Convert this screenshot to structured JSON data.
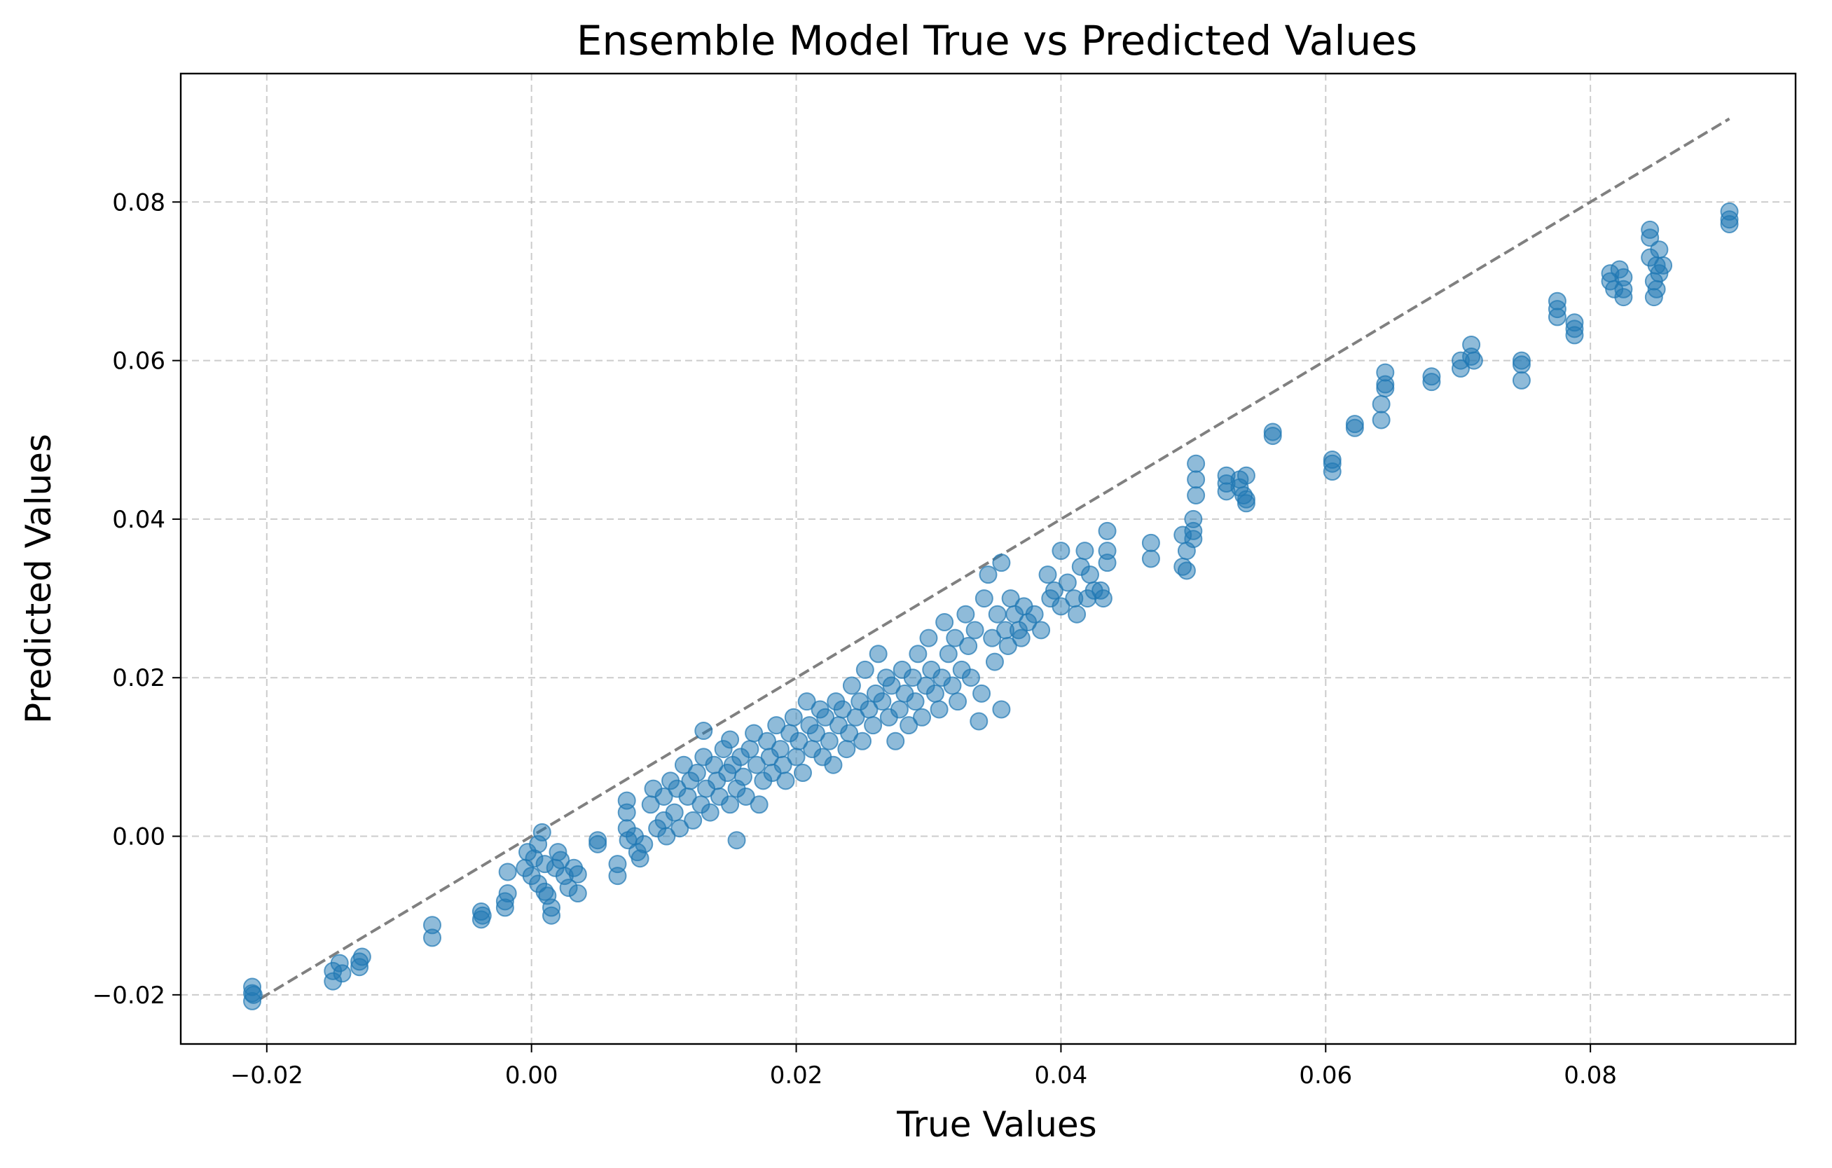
{
  "colors": {
    "point": "#1f77b4",
    "reference_line": "#808080",
    "grid": "#b0b0b0"
  },
  "chart_data": {
    "type": "scatter",
    "title": "Ensemble Model True vs Predicted Values",
    "xlabel": "True Values",
    "ylabel": "Predicted Values",
    "xlim": [
      -0.0265,
      0.0955
    ],
    "ylim": [
      -0.0262,
      0.0962
    ],
    "xticks": [
      {
        "value": -0.02,
        "label": "−0.02"
      },
      {
        "value": 0.0,
        "label": "0.00"
      },
      {
        "value": 0.02,
        "label": "0.02"
      },
      {
        "value": 0.04,
        "label": "0.04"
      },
      {
        "value": 0.06,
        "label": "0.06"
      },
      {
        "value": 0.08,
        "label": "0.08"
      }
    ],
    "yticks": [
      {
        "value": -0.02,
        "label": "−0.02"
      },
      {
        "value": 0.0,
        "label": "0.00"
      },
      {
        "value": 0.02,
        "label": "0.02"
      },
      {
        "value": 0.04,
        "label": "0.04"
      },
      {
        "value": 0.06,
        "label": "0.06"
      },
      {
        "value": 0.08,
        "label": "0.08"
      }
    ],
    "grid": true,
    "point_alpha": 0.5,
    "reference_line": {
      "from": [
        -0.0205,
        -0.0205
      ],
      "to": [
        0.0905,
        0.0905
      ],
      "style": "dashed"
    },
    "points": [
      [
        -0.0211,
        -0.0208
      ],
      [
        -0.0211,
        -0.0198
      ],
      [
        -0.0211,
        -0.019
      ],
      [
        -0.021,
        -0.02
      ],
      [
        -0.015,
        -0.0183
      ],
      [
        -0.015,
        -0.017
      ],
      [
        -0.0145,
        -0.016
      ],
      [
        -0.0143,
        -0.0173
      ],
      [
        -0.013,
        -0.0158
      ],
      [
        -0.013,
        -0.0165
      ],
      [
        -0.0128,
        -0.0152
      ],
      [
        -0.0075,
        -0.0128
      ],
      [
        -0.0075,
        -0.0112
      ],
      [
        -0.0038,
        -0.0105
      ],
      [
        -0.0038,
        -0.0095
      ],
      [
        -0.0037,
        -0.01
      ],
      [
        -0.002,
        -0.009
      ],
      [
        -0.0018,
        -0.0072
      ],
      [
        -0.0018,
        -0.0045
      ],
      [
        -0.002,
        -0.0082
      ],
      [
        -0.0005,
        -0.004
      ],
      [
        -0.0003,
        -0.002
      ],
      [
        0.0,
        -0.005
      ],
      [
        0.0002,
        -0.0028
      ],
      [
        0.0005,
        -0.006
      ],
      [
        0.0005,
        -0.001
      ],
      [
        0.0008,
        0.0005
      ],
      [
        0.001,
        -0.007
      ],
      [
        0.001,
        -0.0035
      ],
      [
        0.0012,
        -0.0075
      ],
      [
        0.0015,
        -0.01
      ],
      [
        0.0015,
        -0.009
      ],
      [
        0.0018,
        -0.004
      ],
      [
        0.002,
        -0.002
      ],
      [
        0.0022,
        -0.003
      ],
      [
        0.0025,
        -0.005
      ],
      [
        0.0028,
        -0.0065
      ],
      [
        0.0032,
        -0.004
      ],
      [
        0.0035,
        -0.0072
      ],
      [
        0.0035,
        -0.0048
      ],
      [
        0.005,
        -0.001
      ],
      [
        0.005,
        -0.0005
      ],
      [
        0.0065,
        -0.005
      ],
      [
        0.0065,
        -0.0035
      ],
      [
        0.0072,
        0.0045
      ],
      [
        0.0072,
        0.003
      ],
      [
        0.0072,
        0.001
      ],
      [
        0.0073,
        -0.0005
      ],
      [
        0.0078,
        0.0
      ],
      [
        0.008,
        -0.002
      ],
      [
        0.0082,
        -0.0028
      ],
      [
        0.0085,
        -0.001
      ],
      [
        0.009,
        0.004
      ],
      [
        0.0092,
        0.006
      ],
      [
        0.0095,
        0.001
      ],
      [
        0.01,
        0.002
      ],
      [
        0.01,
        0.005
      ],
      [
        0.0102,
        0.0
      ],
      [
        0.0105,
        0.007
      ],
      [
        0.0108,
        0.003
      ],
      [
        0.011,
        0.006
      ],
      [
        0.0112,
        0.001
      ],
      [
        0.0115,
        0.009
      ],
      [
        0.0118,
        0.005
      ],
      [
        0.012,
        0.007
      ],
      [
        0.0122,
        0.002
      ],
      [
        0.0125,
        0.008
      ],
      [
        0.0128,
        0.004
      ],
      [
        0.013,
        0.0133
      ],
      [
        0.013,
        0.01
      ],
      [
        0.0132,
        0.006
      ],
      [
        0.0135,
        0.003
      ],
      [
        0.0138,
        0.009
      ],
      [
        0.014,
        0.007
      ],
      [
        0.0142,
        0.005
      ],
      [
        0.0145,
        0.011
      ],
      [
        0.0148,
        0.008
      ],
      [
        0.015,
        0.0122
      ],
      [
        0.015,
        0.004
      ],
      [
        0.0152,
        0.009
      ],
      [
        0.0155,
        -0.0005
      ],
      [
        0.0155,
        0.006
      ],
      [
        0.0158,
        0.01
      ],
      [
        0.016,
        0.0075
      ],
      [
        0.0162,
        0.005
      ],
      [
        0.0165,
        0.011
      ],
      [
        0.0168,
        0.013
      ],
      [
        0.017,
        0.009
      ],
      [
        0.0172,
        0.004
      ],
      [
        0.0175,
        0.007
      ],
      [
        0.0178,
        0.012
      ],
      [
        0.018,
        0.01
      ],
      [
        0.0182,
        0.008
      ],
      [
        0.0185,
        0.014
      ],
      [
        0.0188,
        0.011
      ],
      [
        0.019,
        0.009
      ],
      [
        0.0192,
        0.007
      ],
      [
        0.0195,
        0.013
      ],
      [
        0.0198,
        0.015
      ],
      [
        0.02,
        0.01
      ],
      [
        0.0202,
        0.012
      ],
      [
        0.0205,
        0.008
      ],
      [
        0.0208,
        0.017
      ],
      [
        0.021,
        0.014
      ],
      [
        0.0212,
        0.011
      ],
      [
        0.0215,
        0.013
      ],
      [
        0.0218,
        0.016
      ],
      [
        0.022,
        0.01
      ],
      [
        0.0222,
        0.015
      ],
      [
        0.0225,
        0.012
      ],
      [
        0.0228,
        0.009
      ],
      [
        0.023,
        0.017
      ],
      [
        0.0232,
        0.014
      ],
      [
        0.0235,
        0.016
      ],
      [
        0.0238,
        0.011
      ],
      [
        0.024,
        0.013
      ],
      [
        0.0242,
        0.019
      ],
      [
        0.0245,
        0.015
      ],
      [
        0.0248,
        0.017
      ],
      [
        0.025,
        0.012
      ],
      [
        0.0252,
        0.021
      ],
      [
        0.0255,
        0.016
      ],
      [
        0.0258,
        0.014
      ],
      [
        0.026,
        0.018
      ],
      [
        0.0262,
        0.023
      ],
      [
        0.0265,
        0.017
      ],
      [
        0.0268,
        0.02
      ],
      [
        0.027,
        0.015
      ],
      [
        0.0272,
        0.019
      ],
      [
        0.0275,
        0.012
      ],
      [
        0.0278,
        0.016
      ],
      [
        0.028,
        0.021
      ],
      [
        0.0282,
        0.018
      ],
      [
        0.0285,
        0.014
      ],
      [
        0.0288,
        0.02
      ],
      [
        0.029,
        0.017
      ],
      [
        0.0292,
        0.023
      ],
      [
        0.0295,
        0.015
      ],
      [
        0.0298,
        0.019
      ],
      [
        0.03,
        0.025
      ],
      [
        0.0302,
        0.021
      ],
      [
        0.0305,
        0.018
      ],
      [
        0.0308,
        0.016
      ],
      [
        0.031,
        0.02
      ],
      [
        0.0312,
        0.027
      ],
      [
        0.0315,
        0.023
      ],
      [
        0.0318,
        0.019
      ],
      [
        0.032,
        0.025
      ],
      [
        0.0322,
        0.017
      ],
      [
        0.0325,
        0.021
      ],
      [
        0.0328,
        0.028
      ],
      [
        0.033,
        0.024
      ],
      [
        0.0332,
        0.02
      ],
      [
        0.0335,
        0.026
      ],
      [
        0.0338,
        0.0145
      ],
      [
        0.034,
        0.018
      ],
      [
        0.0342,
        0.03
      ],
      [
        0.0345,
        0.033
      ],
      [
        0.0348,
        0.025
      ],
      [
        0.035,
        0.022
      ],
      [
        0.0352,
        0.028
      ],
      [
        0.0355,
        0.016
      ],
      [
        0.0355,
        0.0345
      ],
      [
        0.0358,
        0.026
      ],
      [
        0.036,
        0.024
      ],
      [
        0.0362,
        0.03
      ],
      [
        0.0365,
        0.028
      ],
      [
        0.0368,
        0.026
      ],
      [
        0.037,
        0.025
      ],
      [
        0.0372,
        0.029
      ],
      [
        0.0375,
        0.027
      ],
      [
        0.038,
        0.028
      ],
      [
        0.0385,
        0.026
      ],
      [
        0.039,
        0.033
      ],
      [
        0.0392,
        0.03
      ],
      [
        0.0395,
        0.031
      ],
      [
        0.04,
        0.036
      ],
      [
        0.04,
        0.029
      ],
      [
        0.0405,
        0.032
      ],
      [
        0.041,
        0.03
      ],
      [
        0.0412,
        0.028
      ],
      [
        0.0415,
        0.034
      ],
      [
        0.0418,
        0.036
      ],
      [
        0.042,
        0.03
      ],
      [
        0.0422,
        0.033
      ],
      [
        0.0425,
        0.031
      ],
      [
        0.043,
        0.031
      ],
      [
        0.0432,
        0.03
      ],
      [
        0.0435,
        0.036
      ],
      [
        0.0435,
        0.0385
      ],
      [
        0.0435,
        0.0345
      ],
      [
        0.0468,
        0.037
      ],
      [
        0.0468,
        0.035
      ],
      [
        0.0492,
        0.038
      ],
      [
        0.0492,
        0.034
      ],
      [
        0.0495,
        0.036
      ],
      [
        0.0495,
        0.0335
      ],
      [
        0.05,
        0.04
      ],
      [
        0.05,
        0.0385
      ],
      [
        0.05,
        0.0375
      ],
      [
        0.0502,
        0.047
      ],
      [
        0.0502,
        0.045
      ],
      [
        0.0502,
        0.043
      ],
      [
        0.0525,
        0.0455
      ],
      [
        0.0525,
        0.0445
      ],
      [
        0.0525,
        0.0435
      ],
      [
        0.0535,
        0.045
      ],
      [
        0.0535,
        0.044
      ],
      [
        0.0538,
        0.043
      ],
      [
        0.054,
        0.042
      ],
      [
        0.054,
        0.0455
      ],
      [
        0.054,
        0.0425
      ],
      [
        0.056,
        0.051
      ],
      [
        0.056,
        0.0505
      ],
      [
        0.0605,
        0.047
      ],
      [
        0.0605,
        0.046
      ],
      [
        0.0605,
        0.0475
      ],
      [
        0.0622,
        0.052
      ],
      [
        0.0622,
        0.0515
      ],
      [
        0.0642,
        0.0545
      ],
      [
        0.0642,
        0.0525
      ],
      [
        0.0645,
        0.0585
      ],
      [
        0.0645,
        0.0565
      ],
      [
        0.0645,
        0.057
      ],
      [
        0.068,
        0.058
      ],
      [
        0.068,
        0.0573
      ],
      [
        0.0702,
        0.06
      ],
      [
        0.0702,
        0.059
      ],
      [
        0.071,
        0.062
      ],
      [
        0.071,
        0.0605
      ],
      [
        0.0712,
        0.06
      ],
      [
        0.0748,
        0.06
      ],
      [
        0.0748,
        0.0575
      ],
      [
        0.0748,
        0.0595
      ],
      [
        0.0775,
        0.0675
      ],
      [
        0.0775,
        0.0665
      ],
      [
        0.0775,
        0.0655
      ],
      [
        0.0788,
        0.0648
      ],
      [
        0.0788,
        0.064
      ],
      [
        0.0788,
        0.0632
      ],
      [
        0.0815,
        0.071
      ],
      [
        0.0815,
        0.07
      ],
      [
        0.0818,
        0.069
      ],
      [
        0.0822,
        0.0715
      ],
      [
        0.0825,
        0.0705
      ],
      [
        0.0825,
        0.068
      ],
      [
        0.0825,
        0.069
      ],
      [
        0.0845,
        0.0765
      ],
      [
        0.0845,
        0.0755
      ],
      [
        0.0845,
        0.073
      ],
      [
        0.0848,
        0.07
      ],
      [
        0.0848,
        0.068
      ],
      [
        0.085,
        0.072
      ],
      [
        0.085,
        0.069
      ],
      [
        0.0852,
        0.074
      ],
      [
        0.0852,
        0.071
      ],
      [
        0.0855,
        0.072
      ],
      [
        0.0905,
        0.0788
      ],
      [
        0.0905,
        0.0778
      ],
      [
        0.0905,
        0.0772
      ]
    ]
  }
}
